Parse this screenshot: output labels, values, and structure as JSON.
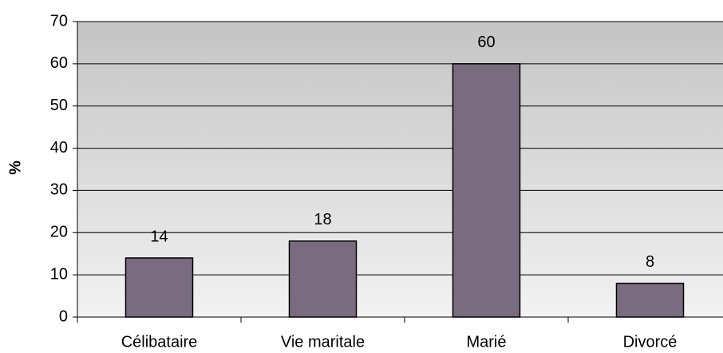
{
  "chart_data": {
    "type": "bar",
    "ylabel": "%",
    "categories": [
      "Célibataire",
      "Vie maritale",
      "Marié",
      "Divorcé"
    ],
    "values": [
      14,
      18,
      60,
      8
    ],
    "color": "#7a6c80",
    "ylim": [
      0,
      70
    ],
    "yticks": [
      0,
      10,
      20,
      30,
      40,
      50,
      60,
      70
    ],
    "grid": true
  }
}
